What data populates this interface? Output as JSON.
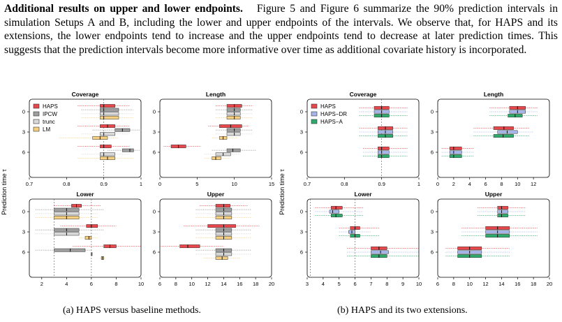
{
  "paragraph": {
    "heading": "Additional results on upper and lower endpoints.",
    "body": "Figure 5 and Figure 6 summarize the 90% prediction intervals in simulation Setups A and B, including the lower and upper endpoints of the intervals. We observe that, for HAPS and its extensions, the lower endpoints tend to increase and the upper endpoints tend to decrease at later prediction times. This suggests that the prediction intervals become more informative over time as additional covariate history is incorporated."
  },
  "captions": {
    "a": "(a) HAPS versus baseline methods.",
    "b": "(b) HAPS and its two extensions."
  },
  "chart_data": [
    {
      "type": "boxplot",
      "group": "a",
      "title": "Coverage",
      "ylabel": "Prediction time τ",
      "categories": [
        "0",
        "3",
        "6"
      ],
      "legend": [
        "HAPS",
        "IPCW",
        "trunc",
        "LM"
      ],
      "legend_position": "top-left",
      "colors": [
        "#e8474c",
        "#9e9e9e",
        "#d9d9d9",
        "#f6cf80"
      ],
      "xlim": [
        0.7,
        1.0
      ],
      "xticks": [
        "0.7",
        "0.8",
        "0.9",
        "1"
      ],
      "reference_line": 0.9,
      "series": [
        {
          "name": "HAPS",
          "boxes": [
            [
              0.83,
              0.89,
              0.9,
              0.93,
              0.97
            ],
            [
              0.83,
              0.89,
              0.91,
              0.93,
              0.97
            ],
            [
              0.83,
              0.89,
              0.9,
              0.92,
              0.97
            ]
          ]
        },
        {
          "name": "IPCW",
          "boxes": [
            [
              0.84,
              0.89,
              0.9,
              0.94,
              0.98
            ],
            [
              0.87,
              0.93,
              0.95,
              0.97,
              1.0
            ],
            [
              0.91,
              0.95,
              0.97,
              0.98,
              1.0
            ]
          ]
        },
        {
          "name": "trunc",
          "boxes": [
            [
              0.84,
              0.89,
              0.9,
              0.94,
              0.98
            ],
            [
              0.84,
              0.89,
              0.9,
              0.93,
              0.97
            ],
            [
              0.84,
              0.89,
              0.9,
              0.93,
              0.97
            ]
          ]
        },
        {
          "name": "LM",
          "boxes": [
            [
              0.84,
              0.89,
              0.9,
              0.94,
              0.98
            ],
            [
              0.78,
              0.87,
              0.89,
              0.91,
              0.94
            ],
            [
              0.83,
              0.89,
              0.91,
              0.93,
              0.98
            ]
          ]
        }
      ]
    },
    {
      "type": "boxplot",
      "group": "a",
      "title": "Length",
      "categories": [
        "0",
        "3",
        "6"
      ],
      "xlim": [
        0,
        15
      ],
      "xticks": [
        "0",
        "5",
        "10",
        "15"
      ],
      "series": [
        {
          "name": "HAPS",
          "boxes": [
            [
              7.5,
              9.0,
              10.0,
              11.0,
              12.5
            ],
            [
              6.5,
              8.0,
              9.5,
              11.0,
              12.0
            ],
            [
              0.5,
              1.5,
              2.5,
              3.5,
              5.5
            ]
          ]
        },
        {
          "name": "IPCW",
          "boxes": [
            [
              7.5,
              9.0,
              10.0,
              10.8,
              12.5
            ],
            [
              7.5,
              9.0,
              10.0,
              10.8,
              12.5
            ],
            [
              7.0,
              9.0,
              9.8,
              10.8,
              13.0
            ]
          ]
        },
        {
          "name": "trunc",
          "boxes": [
            [
              7.5,
              9.0,
              10.0,
              10.8,
              12.5
            ],
            [
              7.5,
              9.0,
              10.0,
              10.8,
              12.5
            ],
            [
              6.0,
              7.5,
              8.5,
              9.5,
              10.8
            ]
          ]
        },
        {
          "name": "LM",
          "boxes": [
            [
              7.5,
              9.0,
              10.0,
              10.8,
              12.5
            ],
            [
              7.0,
              8.0,
              8.5,
              9.0,
              10.5
            ],
            [
              6.0,
              7.0,
              7.5,
              8.2,
              9.5
            ]
          ]
        }
      ]
    },
    {
      "type": "boxplot",
      "group": "a",
      "title": "Lower",
      "categories": [
        "0",
        "3",
        "6"
      ],
      "xlim": [
        1,
        10
      ],
      "xticks": [
        "2",
        "4",
        "6",
        "8",
        "10"
      ],
      "reference_lines": [
        3,
        6
      ],
      "series": [
        {
          "name": "HAPS",
          "boxes": [
            [
              3.0,
              4.4,
              4.8,
              5.2,
              6.8
            ],
            [
              3.5,
              5.6,
              6.0,
              6.5,
              8.0
            ],
            [
              4.5,
              7.0,
              7.5,
              8.0,
              10.0
            ]
          ]
        },
        {
          "name": "IPCW",
          "boxes": [
            [
              1.5,
              3.0,
              4.0,
              5.0,
              7.0
            ],
            [
              1.5,
              3.0,
              4.0,
              5.0,
              7.0
            ],
            [
              1.5,
              3.0,
              4.3,
              5.5,
              6.0
            ]
          ]
        },
        {
          "name": "trunc",
          "boxes": [
            [
              1.5,
              3.0,
              4.0,
              5.0,
              6.5
            ],
            [
              1.5,
              3.0,
              4.0,
              5.0,
              6.5
            ],
            [
              5.95,
              6.0,
              6.0,
              6.0,
              6.1
            ]
          ]
        },
        {
          "name": "LM",
          "boxes": [
            [
              1.5,
              3.0,
              4.0,
              5.0,
              6.5
            ],
            [
              5.0,
              5.5,
              5.8,
              6.0,
              6.5
            ],
            [
              6.7,
              6.8,
              6.9,
              7.0,
              7.1
            ]
          ]
        }
      ]
    },
    {
      "type": "boxplot",
      "group": "a",
      "title": "Upper",
      "categories": [
        "0",
        "3",
        "6"
      ],
      "xlim": [
        6,
        20
      ],
      "xticks": [
        "6",
        "8",
        "10",
        "12",
        "14",
        "16",
        "18",
        "20"
      ],
      "series": [
        {
          "name": "HAPS",
          "boxes": [
            [
              11.0,
              13.0,
              14.0,
              14.8,
              17.0
            ],
            [
              9.0,
              12.0,
              14.0,
              15.5,
              18.5
            ],
            [
              6.0,
              8.5,
              9.5,
              11.0,
              14.0
            ]
          ]
        },
        {
          "name": "IPCW",
          "boxes": [
            [
              10.5,
              13.0,
              14.0,
              15.0,
              17.5
            ],
            [
              10.5,
              13.0,
              14.0,
              15.0,
              17.5
            ],
            [
              10.5,
              13.0,
              14.0,
              15.0,
              17.5
            ]
          ]
        },
        {
          "name": "trunc",
          "boxes": [
            [
              10.5,
              13.0,
              14.0,
              15.0,
              17.5
            ],
            [
              10.5,
              13.0,
              14.0,
              15.0,
              17.5
            ],
            [
              10.5,
              13.0,
              14.0,
              15.0,
              17.5
            ]
          ]
        },
        {
          "name": "LM",
          "boxes": [
            [
              10.5,
              13.0,
              14.0,
              15.0,
              17.5
            ],
            [
              10.5,
              13.0,
              14.0,
              15.0,
              17.5
            ],
            [
              11.5,
              13.0,
              13.8,
              14.5,
              16.0
            ]
          ]
        }
      ]
    },
    {
      "type": "boxplot",
      "group": "b",
      "title": "Coverage",
      "ylabel": "Prediction time τ",
      "categories": [
        "0",
        "3",
        "6"
      ],
      "legend": [
        "HAPS",
        "HAPS−DR",
        "HAPS−A"
      ],
      "legend_position": "top-left",
      "colors": [
        "#e8474c",
        "#a7b6ea",
        "#2eaa6c"
      ],
      "xlim": [
        0.7,
        1.0
      ],
      "xticks": [
        "0.7",
        "0.8",
        "0.9",
        "1"
      ],
      "reference_line": 0.9,
      "series": [
        {
          "name": "HAPS",
          "boxes": [
            [
              0.84,
              0.88,
              0.9,
              0.92,
              0.97
            ],
            [
              0.84,
              0.89,
              0.91,
              0.93,
              0.97
            ],
            [
              0.85,
              0.89,
              0.9,
              0.92,
              0.97
            ]
          ]
        },
        {
          "name": "HAPS−DR",
          "boxes": [
            [
              0.84,
              0.88,
              0.9,
              0.92,
              0.97
            ],
            [
              0.84,
              0.89,
              0.91,
              0.93,
              0.97
            ],
            [
              0.85,
              0.89,
              0.9,
              0.92,
              0.97
            ]
          ]
        },
        {
          "name": "HAPS−A",
          "boxes": [
            [
              0.84,
              0.88,
              0.9,
              0.92,
              0.97
            ],
            [
              0.84,
              0.89,
              0.91,
              0.93,
              0.97
            ],
            [
              0.85,
              0.89,
              0.9,
              0.92,
              0.97
            ]
          ]
        }
      ]
    },
    {
      "type": "boxplot",
      "group": "b",
      "title": "Length",
      "categories": [
        "0",
        "3",
        "6"
      ],
      "xlim": [
        0,
        14
      ],
      "xticks": [
        "0",
        "2",
        "4",
        "6",
        "8",
        "10",
        "12"
      ],
      "series": [
        {
          "name": "HAPS",
          "boxes": [
            [
              6.5,
              9.0,
              10.0,
              11.0,
              12.5
            ],
            [
              4.5,
              7.0,
              8.3,
              9.5,
              11.5
            ],
            [
              0.5,
              1.5,
              2.0,
              3.0,
              4.5
            ]
          ]
        },
        {
          "name": "HAPS−DR",
          "boxes": [
            [
              6.5,
              9.0,
              10.0,
              11.0,
              12.5
            ],
            [
              4.5,
              7.5,
              8.7,
              10.0,
              12.0
            ],
            [
              0.5,
              1.5,
              2.0,
              3.0,
              4.5
            ]
          ]
        },
        {
          "name": "HAPS−A",
          "boxes": [
            [
              6.5,
              8.8,
              9.7,
              10.6,
              12.5
            ],
            [
              4.5,
              7.0,
              8.2,
              9.5,
              11.5
            ],
            [
              0.5,
              1.5,
              2.0,
              3.0,
              4.5
            ]
          ]
        }
      ]
    },
    {
      "type": "boxplot",
      "group": "b",
      "title": "Lower",
      "categories": [
        "0",
        "3",
        "6"
      ],
      "xlim": [
        3,
        10
      ],
      "xticks": [
        "3",
        "4",
        "5",
        "6",
        "7",
        "8",
        "9",
        "10"
      ],
      "reference_lines": [
        3.2,
        6.0
      ],
      "series": [
        {
          "name": "HAPS",
          "boxes": [
            [
              3.5,
              4.5,
              4.8,
              5.2,
              6.5
            ],
            [
              5.0,
              5.7,
              6.0,
              6.3,
              7.5
            ],
            [
              5.5,
              7.0,
              7.5,
              8.0,
              10.0
            ]
          ]
        },
        {
          "name": "HAPS−DR",
          "boxes": [
            [
              3.5,
              4.4,
              4.6,
              5.0,
              6.5
            ],
            [
              5.0,
              5.6,
              5.8,
              6.0,
              7.0
            ],
            [
              5.5,
              7.0,
              7.6,
              8.1,
              10.0
            ]
          ]
        },
        {
          "name": "HAPS−A",
          "boxes": [
            [
              3.5,
              4.5,
              4.8,
              5.2,
              6.5
            ],
            [
              5.0,
              5.7,
              6.0,
              6.3,
              7.5
            ],
            [
              5.5,
              7.0,
              7.5,
              8.0,
              10.0
            ]
          ]
        }
      ]
    },
    {
      "type": "boxplot",
      "group": "b",
      "title": "Upper",
      "categories": [
        "0",
        "3",
        "6"
      ],
      "xlim": [
        6,
        20
      ],
      "xticks": [
        "6",
        "8",
        "10",
        "12",
        "14",
        "16",
        "18",
        "20"
      ],
      "series": [
        {
          "name": "HAPS",
          "boxes": [
            [
              11.0,
              13.5,
              14.0,
              14.8,
              17.0
            ],
            [
              9.0,
              12.0,
              13.5,
              15.0,
              18.5
            ],
            [
              7.0,
              8.5,
              10.0,
              11.5,
              15.0
            ]
          ]
        },
        {
          "name": "HAPS−DR",
          "boxes": [
            [
              11.0,
              13.5,
              14.0,
              14.8,
              17.0
            ],
            [
              9.0,
              12.0,
              13.5,
              15.0,
              18.5
            ],
            [
              7.0,
              8.5,
              10.0,
              11.5,
              15.0
            ]
          ]
        },
        {
          "name": "HAPS−A",
          "boxes": [
            [
              11.0,
              13.5,
              14.0,
              14.8,
              17.0
            ],
            [
              9.0,
              12.0,
              13.5,
              15.0,
              18.5
            ],
            [
              7.0,
              8.5,
              10.0,
              11.5,
              15.0
            ]
          ]
        }
      ]
    }
  ]
}
